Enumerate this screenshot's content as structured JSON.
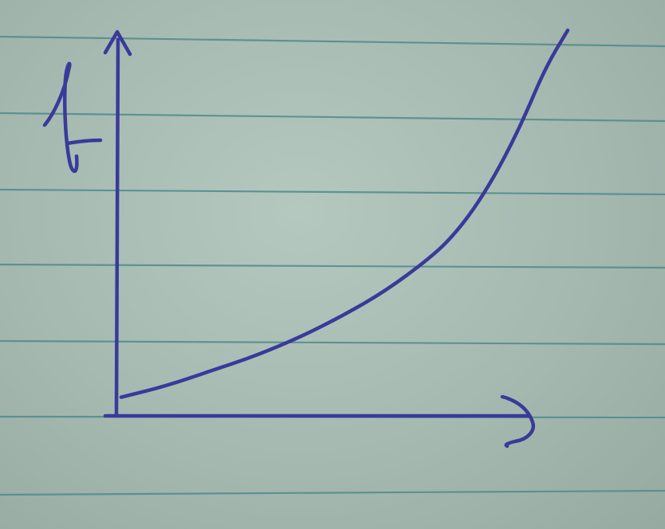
{
  "paper": {
    "background": "#a5b9b0",
    "ruled_line_color": "#4f8c8a",
    "ink_color": "#3a3a9a"
  },
  "chart_data": {
    "type": "line",
    "xlabel": "s",
    "ylabel": "f",
    "title": "",
    "grid": false,
    "legend": "none",
    "curve_shape": "increasing, convex (exponential-like growth)",
    "series": [
      {
        "values_x": [
          0,
          0.1,
          0.2,
          0.3,
          0.4,
          0.5,
          0.6,
          0.7,
          0.75,
          0.8,
          0.85,
          0.9,
          0.95,
          1.0
        ],
        "values_y": [
          0.02,
          0.05,
          0.09,
          0.13,
          0.18,
          0.24,
          0.31,
          0.4,
          0.46,
          0.54,
          0.64,
          0.76,
          0.9,
          1.0
        ]
      }
    ]
  }
}
